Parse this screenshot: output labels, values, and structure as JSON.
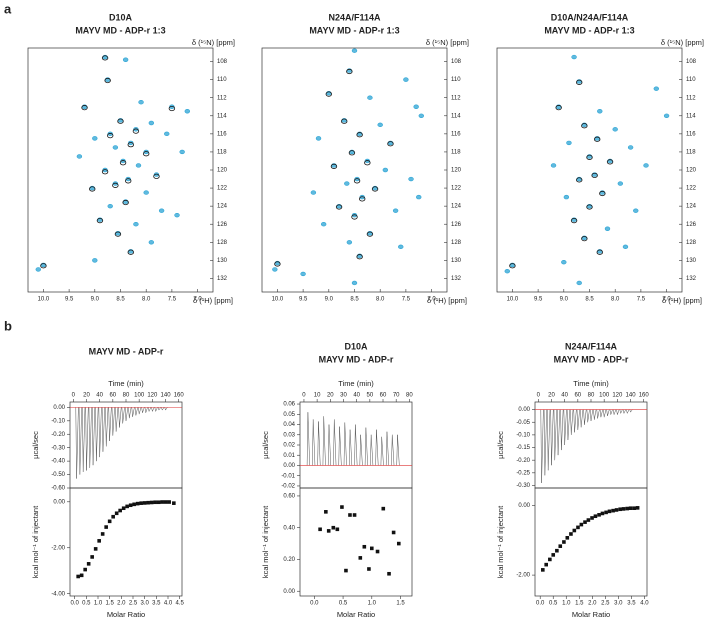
{
  "panel_labels": [
    "a",
    "b"
  ],
  "chart_data": [
    {
      "type": "hsqc",
      "title": "D10A",
      "subtitle": "MAYV MD - ADP-r 1:3",
      "xlabel": "δ (¹H) [ppm]",
      "ylabel": "δ (¹⁵N) [ppm]",
      "xlim": [
        10.3,
        6.7
      ],
      "ylim": [
        133.5,
        106.5
      ],
      "xticks": [
        {
          "value": 10,
          "label": "10.0"
        },
        9.5,
        {
          "value": 9,
          "label": "9.0"
        },
        8.5,
        {
          "value": 8,
          "label": "8.0"
        },
        7.5,
        {
          "value": 7,
          "label": "7.0"
        }
      ],
      "yticks": [
        108,
        110,
        112,
        114,
        116,
        118,
        120,
        122,
        124,
        126,
        128,
        130,
        132
      ],
      "series": [
        {
          "color": "#29a3d4",
          "x": [
            8.8,
            8.4,
            8.75,
            9.2,
            8.1,
            7.5,
            7.2,
            8.5,
            7.9,
            8.2,
            8.7,
            9.0,
            7.6,
            8.3,
            8.6,
            8.0,
            9.3,
            8.45,
            8.15,
            8.8,
            7.8,
            8.35,
            8.6,
            9.05,
            8.0,
            8.4,
            8.7,
            7.7,
            8.9,
            8.2,
            8.55,
            7.9,
            8.3,
            9.0,
            10.0,
            10.1,
            7.4,
            7.3
          ],
          "values": [
            107.5,
            107.8,
            110,
            113,
            112.5,
            113,
            113.5,
            114.5,
            114.8,
            115.5,
            116,
            116.5,
            116,
            117,
            117.5,
            118,
            118.5,
            119,
            119.5,
            120,
            120.5,
            121,
            121.5,
            122,
            122.5,
            123.5,
            124,
            124.5,
            125.5,
            126,
            127,
            128,
            129,
            130,
            130.5,
            131,
            125,
            118
          ]
        },
        {
          "color": "#1a1a1a",
          "x": [
            8.8,
            8.75,
            9.2,
            8.5,
            8.2,
            8.7,
            8.3,
            8.0,
            8.45,
            8.8,
            8.35,
            9.05,
            8.4,
            8.9,
            8.55,
            8.3,
            10.0,
            7.5,
            7.8,
            8.6
          ],
          "values": [
            107.6,
            110.1,
            113.1,
            114.6,
            115.7,
            116.2,
            117.2,
            118.2,
            119.2,
            120.2,
            121.2,
            122.1,
            123.6,
            125.6,
            127.1,
            129.1,
            130.6,
            113.2,
            120.7,
            121.7
          ]
        }
      ]
    },
    {
      "type": "hsqc",
      "title": "N24A/F114A",
      "subtitle": "MAYV MD - ADP-r 1:3",
      "xlabel": "δ (¹H) [ppm]",
      "ylabel": "δ (¹⁵N) [ppm]",
      "xlim": [
        10.3,
        6.7
      ],
      "ylim": [
        133.5,
        106.5
      ],
      "xticks": [
        {
          "value": 10,
          "label": "10.0"
        },
        9.5,
        {
          "value": 9,
          "label": "9.0"
        },
        8.5,
        {
          "value": 8,
          "label": "8.0"
        },
        7.5,
        {
          "value": 7,
          "label": "7.0"
        }
      ],
      "yticks": [
        108,
        110,
        112,
        114,
        116,
        118,
        120,
        122,
        124,
        126,
        128,
        130,
        132
      ],
      "series": [
        {
          "color": "#29a3d4",
          "x": [
            8.5,
            8.6,
            7.5,
            9.0,
            8.2,
            7.3,
            7.2,
            8.7,
            8.0,
            8.4,
            9.2,
            7.8,
            8.55,
            8.25,
            8.9,
            7.9,
            8.45,
            8.65,
            8.1,
            9.3,
            8.35,
            8.8,
            7.7,
            8.5,
            9.1,
            8.2,
            8.6,
            7.6,
            8.4,
            10.0,
            10.05,
            9.5,
            8.5,
            7.4,
            7.25
          ],
          "values": [
            106.8,
            109,
            110,
            111.5,
            112,
            113,
            114,
            114.5,
            115,
            116,
            116.5,
            117,
            118,
            119,
            119.5,
            120,
            121,
            121.5,
            122,
            122.5,
            123,
            124,
            124.5,
            125,
            126,
            127,
            128,
            128.5,
            129.5,
            130.3,
            131,
            131.5,
            132.5,
            121,
            123
          ]
        },
        {
          "color": "#1a1a1a",
          "x": [
            8.6,
            9.0,
            8.7,
            8.4,
            8.55,
            8.25,
            8.45,
            8.1,
            8.35,
            8.8,
            8.5,
            8.2,
            8.4,
            10.0,
            7.8,
            8.9
          ],
          "values": [
            109.1,
            111.6,
            114.6,
            116.1,
            118.1,
            119.2,
            121.2,
            122.1,
            123.2,
            124.1,
            125.2,
            127.1,
            129.6,
            130.4,
            117.1,
            119.6
          ]
        }
      ]
    },
    {
      "type": "hsqc",
      "title": "D10A/N24A/F114A",
      "subtitle": "MAYV MD - ADP-r 1:3",
      "xlabel": "δ (¹H) [ppm]",
      "ylabel": "δ (¹⁵N) [ppm]",
      "xlim": [
        10.3,
        6.7
      ],
      "ylim": [
        133.5,
        106.5
      ],
      "xticks": [
        {
          "value": 10,
          "label": "10.0"
        },
        9.5,
        {
          "value": 9,
          "label": "9.0"
        },
        8.5,
        {
          "value": 8,
          "label": "8.0"
        },
        7.5,
        {
          "value": 7,
          "label": "7.0"
        }
      ],
      "yticks": [
        108,
        110,
        112,
        114,
        116,
        118,
        120,
        122,
        124,
        126,
        128,
        130,
        132
      ],
      "series": [
        {
          "color": "#29a3d4",
          "x": [
            8.8,
            8.7,
            7.2,
            9.1,
            8.3,
            7.0,
            8.6,
            8.0,
            8.35,
            8.9,
            7.7,
            8.5,
            8.1,
            9.2,
            8.4,
            8.7,
            7.9,
            8.25,
            8.95,
            8.5,
            7.6,
            8.8,
            8.15,
            8.6,
            7.8,
            8.3,
            9.0,
            10.0,
            10.1,
            8.7,
            7.4
          ],
          "values": [
            107.5,
            110.2,
            111,
            113,
            113.5,
            114,
            115,
            115.5,
            116.5,
            117,
            117.5,
            118.5,
            119,
            119.5,
            120.5,
            121,
            121.5,
            122.5,
            123,
            124,
            124.5,
            125.5,
            126.5,
            127.5,
            128.5,
            129,
            130.2,
            130.5,
            131.2,
            132.5,
            119.5
          ]
        },
        {
          "color": "#1a1a1a",
          "x": [
            8.7,
            9.1,
            8.6,
            8.35,
            8.5,
            8.1,
            8.4,
            8.7,
            8.25,
            8.5,
            8.8,
            8.6,
            8.3,
            10.0
          ],
          "values": [
            110.3,
            113.1,
            115.1,
            116.6,
            118.6,
            119.1,
            120.6,
            121.1,
            122.6,
            124.1,
            125.6,
            127.6,
            129.1,
            130.6
          ]
        }
      ]
    },
    {
      "type": "itc",
      "title": "MAYV MD - ADP-r",
      "raw": {
        "xlabel": "Time (min)",
        "ylabel": "µcal/sec",
        "xlim": [
          -5,
          165
        ],
        "ylim": [
          -0.6,
          0.04
        ],
        "xticks": [
          0,
          20,
          40,
          60,
          80,
          100,
          120,
          140,
          160
        ],
        "yticks": [
          {
            "value": 0,
            "label": "0.00"
          },
          {
            "value": -0.1,
            "label": "-0.10"
          },
          {
            "value": -0.2,
            "label": "-0.20"
          },
          {
            "value": -0.3,
            "label": "-0.30"
          },
          {
            "value": -0.4,
            "label": "-0.40"
          },
          {
            "value": -0.5,
            "label": "-0.50"
          },
          {
            "value": -0.6,
            "label": "-0.60"
          }
        ],
        "x": [
          5,
          10,
          15,
          20,
          25,
          30,
          35,
          40,
          45,
          50,
          55,
          60,
          65,
          70,
          75,
          80,
          85,
          90,
          95,
          100,
          105,
          110,
          115,
          120,
          125,
          130,
          135,
          140
        ],
        "values": [
          -0.53,
          -0.5,
          -0.48,
          -0.47,
          -0.45,
          -0.43,
          -0.4,
          -0.37,
          -0.33,
          -0.29,
          -0.25,
          -0.21,
          -0.18,
          -0.15,
          -0.12,
          -0.1,
          -0.08,
          -0.07,
          -0.06,
          -0.05,
          -0.04,
          -0.04,
          -0.03,
          -0.03,
          -0.03,
          -0.02,
          -0.02,
          -0.02
        ]
      },
      "binding": {
        "xlabel": "Molar Ratio",
        "ylabel": "kcal mol⁻¹ of injectant",
        "xlim": [
          -0.2,
          4.6
        ],
        "ylim": [
          -4.1,
          0.6
        ],
        "xticks": [
          {
            "value": 0,
            "label": "0.0"
          },
          0.5,
          {
            "value": 1,
            "label": "1.0"
          },
          1.5,
          {
            "value": 2,
            "label": "2.0"
          },
          2.5,
          {
            "value": 3,
            "label": "3.0"
          },
          3.5,
          {
            "value": 4,
            "label": "4.0"
          },
          4.5
        ],
        "yticks": [
          {
            "value": -4,
            "label": "-4.00"
          },
          {
            "value": -2,
            "label": "-2.00"
          },
          {
            "value": 0,
            "label": "0.00"
          }
        ],
        "x": [
          0.15,
          0.3,
          0.45,
          0.6,
          0.75,
          0.9,
          1.05,
          1.2,
          1.35,
          1.5,
          1.65,
          1.8,
          1.95,
          2.1,
          2.25,
          2.4,
          2.55,
          2.7,
          2.85,
          3.0,
          3.15,
          3.3,
          3.45,
          3.6,
          3.75,
          3.9,
          4.05,
          4.25
        ],
        "values": [
          -3.25,
          -3.2,
          -2.95,
          -2.7,
          -2.4,
          -2.05,
          -1.7,
          -1.4,
          -1.1,
          -0.85,
          -0.65,
          -0.5,
          -0.38,
          -0.28,
          -0.2,
          -0.15,
          -0.11,
          -0.08,
          -0.06,
          -0.05,
          -0.04,
          -0.03,
          -0.02,
          -0.02,
          -0.01,
          -0.01,
          -0.01,
          -0.06
        ]
      }
    },
    {
      "type": "itc",
      "title": "D10A",
      "subtitle": "MAYV MD - ADP-r",
      "raw": {
        "xlabel": "Time (min)",
        "ylabel": "µcal/sec",
        "xlim": [
          -3,
          82
        ],
        "ylim": [
          -0.022,
          0.062
        ],
        "xticks": [
          0,
          10,
          20,
          30,
          40,
          50,
          60,
          70,
          80
        ],
        "yticks": [
          0.06,
          0.05,
          0.04,
          0.03,
          0.02,
          0.01,
          {
            "value": 0,
            "label": "0.00"
          },
          -0.01,
          -0.02
        ],
        "x": [
          3,
          7,
          11,
          15,
          19,
          23,
          27,
          31,
          35,
          39,
          43,
          47,
          51,
          55,
          59,
          63,
          67,
          71
        ],
        "values": [
          0.052,
          0.045,
          0.043,
          0.048,
          0.04,
          0.045,
          0.038,
          0.042,
          0.035,
          0.04,
          0.03,
          0.037,
          0.03,
          0.035,
          0.028,
          0.033,
          0.03,
          0.03
        ]
      },
      "binding": {
        "xlabel": "Molar Ratio",
        "ylabel": "kcal mol⁻¹ of injectant",
        "xlim": [
          -0.25,
          1.7
        ],
        "ylim": [
          -0.03,
          0.65
        ],
        "xticks": [
          {
            "value": 0,
            "label": "0.0"
          },
          0.5,
          {
            "value": 1,
            "label": "1.0"
          },
          1.5
        ],
        "yticks": [
          {
            "value": 0,
            "label": "0.00"
          },
          {
            "value": 0.2,
            "label": "0.20"
          },
          {
            "value": 0.4,
            "label": "0.40"
          },
          {
            "value": 0.6,
            "label": "0.60"
          }
        ],
        "x": [
          0.1,
          0.2,
          0.25,
          0.33,
          0.4,
          0.48,
          0.55,
          0.62,
          0.7,
          0.8,
          0.87,
          0.95,
          1.0,
          1.1,
          1.2,
          1.3,
          1.38,
          1.47
        ],
        "values": [
          0.39,
          0.5,
          0.38,
          0.4,
          0.39,
          0.53,
          0.13,
          0.48,
          0.48,
          0.21,
          0.28,
          0.14,
          0.27,
          0.25,
          0.52,
          0.11,
          0.37,
          0.3
        ]
      }
    },
    {
      "type": "itc",
      "title": "N24A/F114A",
      "subtitle": "MAYV MD - ADP-r",
      "raw": {
        "xlabel": "Time (min)",
        "ylabel": "µcal/sec",
        "xlim": [
          -5,
          165
        ],
        "ylim": [
          -0.31,
          0.03
        ],
        "xticks": [
          0,
          20,
          40,
          60,
          80,
          100,
          120,
          140,
          160
        ],
        "yticks": [
          {
            "value": 0,
            "label": "0.00"
          },
          -0.05,
          {
            "value": -0.1,
            "label": "-0.10"
          },
          -0.15,
          {
            "value": -0.2,
            "label": "-0.20"
          },
          -0.25,
          {
            "value": -0.3,
            "label": "-0.30"
          }
        ],
        "x": [
          5,
          10,
          15,
          20,
          25,
          30,
          35,
          40,
          45,
          50,
          55,
          60,
          65,
          70,
          75,
          80,
          85,
          90,
          95,
          100,
          105,
          110,
          115,
          120,
          125,
          130,
          135,
          140
        ],
        "values": [
          -0.29,
          -0.26,
          -0.24,
          -0.22,
          -0.2,
          -0.18,
          -0.16,
          -0.14,
          -0.12,
          -0.1,
          -0.09,
          -0.08,
          -0.07,
          -0.06,
          -0.05,
          -0.045,
          -0.04,
          -0.035,
          -0.03,
          -0.03,
          -0.025,
          -0.02,
          -0.02,
          -0.02,
          -0.015,
          -0.015,
          -0.015,
          -0.01
        ]
      },
      "binding": {
        "xlabel": "Molar Ratio",
        "ylabel": "kcal mol⁻¹ of injectant",
        "xlim": [
          -0.2,
          4.1
        ],
        "ylim": [
          -2.6,
          0.5
        ],
        "xticks": [
          {
            "value": 0,
            "label": "0.0"
          },
          0.5,
          {
            "value": 1,
            "label": "1.0"
          },
          1.5,
          {
            "value": 2,
            "label": "2.0"
          },
          2.5,
          {
            "value": 3,
            "label": "3.0"
          },
          3.5,
          {
            "value": 4,
            "label": "4.0"
          }
        ],
        "yticks": [
          {
            "value": -2,
            "label": "-2.00"
          },
          {
            "value": 0,
            "label": "0.00"
          }
        ],
        "x": [
          0.1,
          0.23,
          0.37,
          0.5,
          0.64,
          0.77,
          0.91,
          1.04,
          1.18,
          1.31,
          1.45,
          1.58,
          1.72,
          1.85,
          1.99,
          2.12,
          2.26,
          2.39,
          2.53,
          2.66,
          2.8,
          2.93,
          3.07,
          3.2,
          3.34,
          3.47,
          3.61,
          3.74
        ],
        "values": [
          -1.85,
          -1.7,
          -1.55,
          -1.42,
          -1.3,
          -1.17,
          -1.05,
          -0.93,
          -0.82,
          -0.72,
          -0.63,
          -0.55,
          -0.48,
          -0.42,
          -0.36,
          -0.31,
          -0.27,
          -0.23,
          -0.2,
          -0.17,
          -0.15,
          -0.13,
          -0.11,
          -0.1,
          -0.09,
          -0.08,
          -0.08,
          -0.07
        ]
      }
    }
  ]
}
